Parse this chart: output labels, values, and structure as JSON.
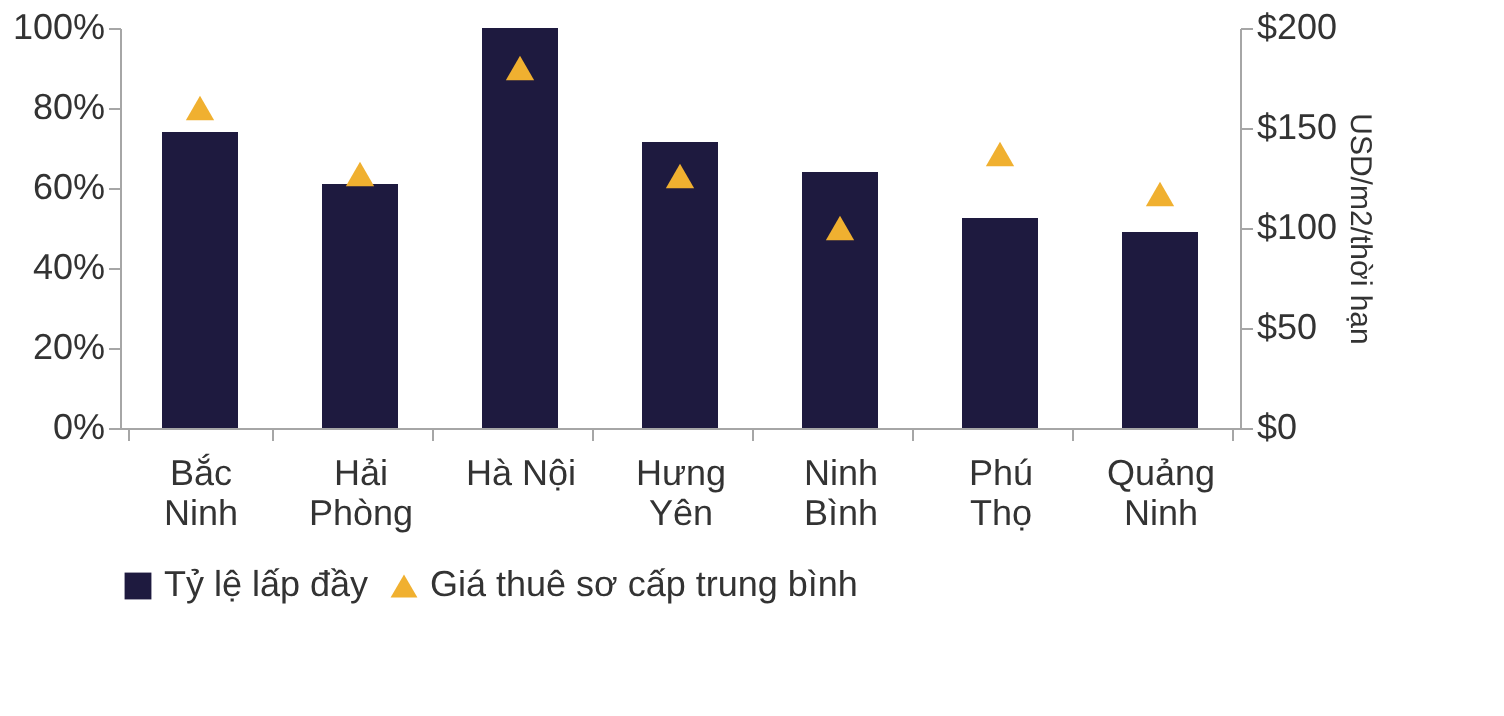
{
  "chart_data": {
    "type": "bar",
    "categories": [
      "Bắc\nNinh",
      "Hải\nPhòng",
      "Hà Nội",
      "Hưng\nYên",
      "Ninh\nBình",
      "Phú\nThọ",
      "Quảng\nNinh"
    ],
    "series": [
      {
        "name": "Tỷ lệ lấp đầy",
        "color": "#1e1a3f",
        "values": [
          74,
          61,
          100,
          71.5,
          64,
          52.5,
          49
        ]
      },
      {
        "name": "Giá thuê sơ cấp trung bình",
        "type": "scatter",
        "axis": "y2",
        "marker": "triangle",
        "color": "#f0b030",
        "values": [
          160,
          127,
          180,
          126,
          100,
          137,
          117
        ]
      }
    ],
    "ylim": [
      0,
      100
    ],
    "yticks": [
      {
        "value": 0,
        "label": "0%"
      },
      {
        "value": 20,
        "label": "20%"
      },
      {
        "value": 40,
        "label": "40%"
      },
      {
        "value": 60,
        "label": "60%"
      },
      {
        "value": 80,
        "label": "80%"
      },
      {
        "value": 100,
        "label": "100%"
      }
    ],
    "y2lim": [
      0,
      200
    ],
    "y2ticks": [
      {
        "value": 0,
        "label": "$0"
      },
      {
        "value": 50,
        "label": "$50"
      },
      {
        "value": 100,
        "label": "$100"
      },
      {
        "value": 150,
        "label": "$150"
      },
      {
        "value": 200,
        "label": "$200"
      }
    ],
    "y2label": "USD/m2/thời hạn",
    "grid": false,
    "legend": "bottom"
  }
}
